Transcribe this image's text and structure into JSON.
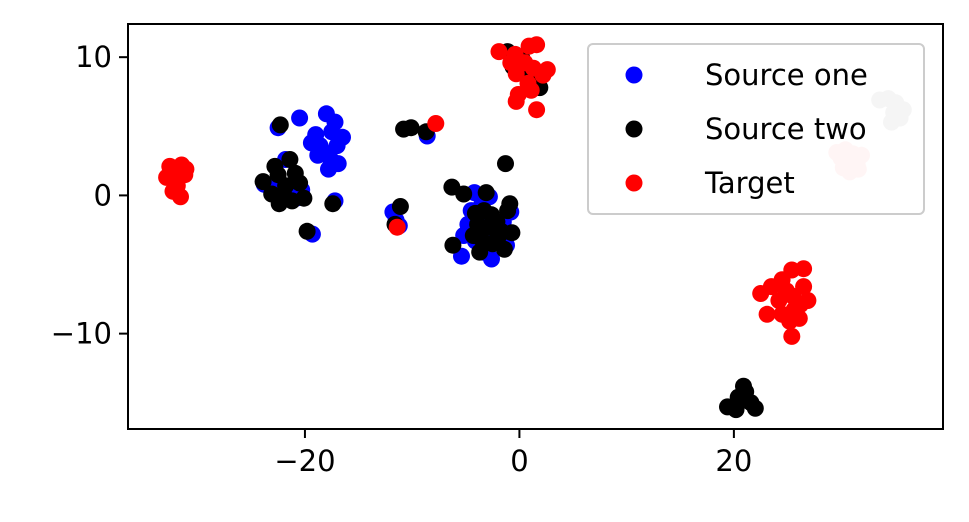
{
  "chart_data": {
    "type": "scatter",
    "title": "",
    "xlabel": "",
    "ylabel": "",
    "xlim": [
      -36.5,
      39.5
    ],
    "ylim": [
      -16.9,
      12.4
    ],
    "xticks": [
      -20,
      0,
      20
    ],
    "yticks": [
      -10,
      0,
      10
    ],
    "tick_labels": {
      "x": [
        "−20",
        "0",
        "20"
      ],
      "y": [
        "−10",
        "0",
        "10"
      ]
    },
    "grid": false,
    "legend_position": "top-right",
    "series": [
      {
        "name": "Source one",
        "color": "#0000ff",
        "points": [
          [
            -18,
            5.9
          ],
          [
            -17.2,
            5.3
          ],
          [
            -16.5,
            4.2
          ],
          [
            -17.5,
            4.6
          ],
          [
            -19,
            4.4
          ],
          [
            -18.6,
            3.6
          ],
          [
            -18.2,
            3.1
          ],
          [
            -17,
            3.6
          ],
          [
            -17.6,
            2.6
          ],
          [
            -18.8,
            2.9
          ],
          [
            -16.9,
            2.3
          ],
          [
            -19.4,
            3.8
          ],
          [
            -17.8,
            1.9
          ],
          [
            -20.5,
            5.6
          ],
          [
            -22.5,
            4.9
          ],
          [
            -21.8,
            2.6
          ],
          [
            -22.5,
            1.1
          ],
          [
            -23.8,
            0.8
          ],
          [
            -22.8,
            0.5
          ],
          [
            -21.5,
            0.6
          ],
          [
            -20.3,
            0.4
          ],
          [
            -22.1,
            -0.1
          ],
          [
            -20.8,
            -0.2
          ],
          [
            -19.3,
            -2.8
          ],
          [
            -17.2,
            -0.4
          ],
          [
            -11.8,
            -1.2
          ],
          [
            -11.5,
            -1.8
          ],
          [
            -11.2,
            -2.2
          ],
          [
            -8.6,
            4.3
          ],
          [
            -4.2,
            0.2
          ],
          [
            -3.5,
            -0.6
          ],
          [
            -2.8,
            -0.1
          ],
          [
            -4.5,
            -1.1
          ],
          [
            -3.1,
            -1.6
          ],
          [
            -2.3,
            -2.5
          ],
          [
            -1.5,
            -1.9
          ],
          [
            -5.2,
            -2.9
          ],
          [
            -4.1,
            -3.3
          ],
          [
            -2.9,
            -3.8
          ],
          [
            -1.8,
            -3.2
          ],
          [
            -5.4,
            -4.4
          ],
          [
            -3.4,
            -4.1
          ],
          [
            -2.6,
            -4.6
          ],
          [
            -1.2,
            -3.6
          ],
          [
            -4.8,
            -2.1
          ],
          [
            -0.8,
            -1.2
          ]
        ]
      },
      {
        "name": "Source two",
        "color": "#000000",
        "points": [
          [
            -22.3,
            5.1
          ],
          [
            -21.4,
            2.6
          ],
          [
            -22.8,
            2.1
          ],
          [
            -20.9,
            1.6
          ],
          [
            -23.9,
            1.0
          ],
          [
            -22.5,
            1.5
          ],
          [
            -21.8,
            0.7
          ],
          [
            -20.5,
            0.9
          ],
          [
            -23.1,
            0.1
          ],
          [
            -22.0,
            0.1
          ],
          [
            -21.2,
            -0.4
          ],
          [
            -20.1,
            -0.2
          ],
          [
            -22.4,
            -0.6
          ],
          [
            -19.8,
            -2.6
          ],
          [
            -17.4,
            -0.6
          ],
          [
            -10.8,
            4.8
          ],
          [
            -10.1,
            4.9
          ],
          [
            -8.7,
            4.6
          ],
          [
            -11.1,
            -0.8
          ],
          [
            -11.6,
            -2.1
          ],
          [
            -6.3,
            0.6
          ],
          [
            -5.2,
            0.1
          ],
          [
            -3.1,
            0.2
          ],
          [
            -1.3,
            2.3
          ],
          [
            -4.1,
            -1.3
          ],
          [
            -3.3,
            -1.1
          ],
          [
            -2.6,
            -1.4
          ],
          [
            -3.9,
            -2.1
          ],
          [
            -2.9,
            -2.3
          ],
          [
            -2.1,
            -1.9
          ],
          [
            -1.1,
            -1.1
          ],
          [
            -0.7,
            -2.7
          ],
          [
            -1.7,
            -2.6
          ],
          [
            -6.2,
            -3.6
          ],
          [
            -4.3,
            -2.9
          ],
          [
            -3.6,
            -3.1
          ],
          [
            -2.2,
            -3.3
          ],
          [
            -1.4,
            -3.9
          ],
          [
            -0.9,
            -0.6
          ],
          [
            -3.7,
            -4.1
          ],
          [
            -2.5,
            -3.5
          ],
          [
            -1.9,
            -2.9
          ],
          [
            -1.1,
            10.4
          ],
          [
            0.2,
            10.0
          ],
          [
            -0.6,
            9.3
          ],
          [
            0.9,
            8.6
          ],
          [
            1.9,
            7.8
          ],
          [
            19.4,
            -15.3
          ],
          [
            20.4,
            -14.6
          ],
          [
            21.1,
            -14.2
          ],
          [
            20.2,
            -15.5
          ],
          [
            21.6,
            -15.0
          ],
          [
            20.9,
            -13.8
          ],
          [
            22.0,
            -15.4
          ],
          [
            20.6,
            -14.9
          ]
        ]
      },
      {
        "name": "Target",
        "color": "#ff0000",
        "points": [
          [
            -32.6,
            2.1
          ],
          [
            -32.1,
            1.6
          ],
          [
            -31.5,
            2.2
          ],
          [
            -32.9,
            1.3
          ],
          [
            -31.9,
            0.7
          ],
          [
            -31.2,
            1.5
          ],
          [
            -32.3,
            0.3
          ],
          [
            -31.6,
            -0.1
          ],
          [
            -31.1,
            1.9
          ],
          [
            -32.5,
            1.9
          ],
          [
            -7.8,
            5.2
          ],
          [
            -11.4,
            -2.3
          ],
          [
            -1.9,
            10.4
          ],
          [
            -0.4,
            10.2
          ],
          [
            0.9,
            10.8
          ],
          [
            1.6,
            10.9
          ],
          [
            2.6,
            9.1
          ],
          [
            0.5,
            9.6
          ],
          [
            1.3,
            9.2
          ],
          [
            -0.3,
            8.8
          ],
          [
            0.8,
            8.1
          ],
          [
            -0.1,
            7.3
          ],
          [
            1.1,
            7.6
          ],
          [
            1.6,
            6.2
          ],
          [
            -0.3,
            6.8
          ],
          [
            2.2,
            8.7
          ],
          [
            -0.8,
            9.6
          ],
          [
            22.5,
            -7.1
          ],
          [
            23.5,
            -6.6
          ],
          [
            24.5,
            -6.1
          ],
          [
            25.4,
            -5.4
          ],
          [
            26.5,
            -5.3
          ],
          [
            24.2,
            -7.6
          ],
          [
            25.5,
            -7.3
          ],
          [
            26.2,
            -7.9
          ],
          [
            26.9,
            -7.6
          ],
          [
            23.1,
            -8.6
          ],
          [
            24.5,
            -8.6
          ],
          [
            25.6,
            -8.3
          ],
          [
            25.2,
            -9.1
          ],
          [
            26.1,
            -8.9
          ],
          [
            25.4,
            -10.2
          ],
          [
            26.5,
            -6.6
          ],
          [
            24.9,
            -6.9
          ]
        ]
      },
      {
        "name": "",
        "color": "#ffcccc",
        "points": [
          [
            29.6,
            3.1
          ],
          [
            30.4,
            3.3
          ],
          [
            31.1,
            3.0
          ],
          [
            31.9,
            2.9
          ],
          [
            30.7,
            2.4
          ],
          [
            31.5,
            2.2
          ],
          [
            30.2,
            2.0
          ],
          [
            30.8,
            1.7
          ],
          [
            31.6,
            1.9
          ],
          [
            30.0,
            2.7
          ]
        ]
      },
      {
        "name": "",
        "color": "#cccccc",
        "points": [
          [
            33.6,
            6.9
          ],
          [
            34.4,
            7.0
          ],
          [
            35.1,
            6.7
          ],
          [
            35.8,
            6.2
          ],
          [
            34.9,
            6.0
          ],
          [
            35.5,
            5.6
          ],
          [
            34.7,
            5.3
          ],
          [
            35.2,
            5.8
          ]
        ]
      }
    ]
  }
}
